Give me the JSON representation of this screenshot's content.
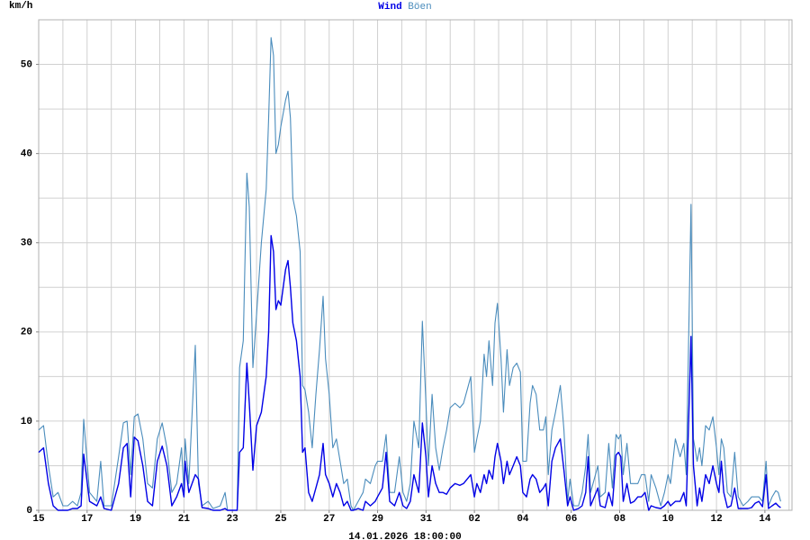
{
  "chart_data": {
    "type": "line",
    "title_separator": " ",
    "y_label": "km/h",
    "footer": "14.01.2026 18:00:00",
    "xlim": [
      0,
      31.12
    ],
    "ylim": [
      0,
      55
    ],
    "xticks": [
      {
        "value": 0,
        "label": "15"
      },
      {
        "value": 2,
        "label": "17"
      },
      {
        "value": 4,
        "label": "19"
      },
      {
        "value": 6,
        "label": "21"
      },
      {
        "value": 8,
        "label": "23"
      },
      {
        "value": 10,
        "label": "25"
      },
      {
        "value": 12,
        "label": "27"
      },
      {
        "value": 14,
        "label": "29"
      },
      {
        "value": 16,
        "label": "31"
      },
      {
        "value": 18,
        "label": "02"
      },
      {
        "value": 20,
        "label": "04"
      },
      {
        "value": 22,
        "label": "06"
      },
      {
        "value": 24,
        "label": "08"
      },
      {
        "value": 26,
        "label": "10"
      },
      {
        "value": 28,
        "label": "12"
      },
      {
        "value": 30,
        "label": "14"
      }
    ],
    "yticks": [
      0,
      10,
      20,
      30,
      40,
      50
    ],
    "xgrid": [
      1,
      2,
      3,
      4,
      5,
      6,
      7,
      8,
      9,
      10,
      11,
      12,
      13,
      14,
      15,
      16,
      17,
      18,
      19,
      20,
      21,
      22,
      23,
      24,
      25,
      26,
      27,
      28,
      29,
      30,
      31
    ],
    "ygrid": [
      5,
      10,
      15,
      20,
      25,
      30,
      35,
      40,
      45,
      50
    ],
    "grid": true,
    "x": [
      0,
      0.2,
      0.4,
      0.6,
      0.8,
      1,
      1.2,
      1.4,
      1.6,
      1.75,
      1.86,
      2.1,
      2.4,
      2.56,
      2.7,
      3,
      3.3,
      3.5,
      3.65,
      3.8,
      3.95,
      4.1,
      4.3,
      4.5,
      4.7,
      4.9,
      5.1,
      5.3,
      5.5,
      5.7,
      5.9,
      6,
      6.05,
      6.2,
      6.47,
      6.6,
      6.75,
      7,
      7.2,
      7.5,
      7.7,
      7.8,
      8.2,
      8.3,
      8.45,
      8.6,
      8.7,
      8.85,
      9,
      9.2,
      9.4,
      9.5,
      9.6,
      9.7,
      9.8,
      9.9,
      10,
      10.2,
      10.3,
      10.4,
      10.5,
      10.65,
      10.8,
      10.9,
      11,
      11.15,
      11.3,
      11.45,
      11.6,
      11.75,
      11.85,
      12,
      12.15,
      12.3,
      12.45,
      12.6,
      12.75,
      12.9,
      13,
      13.2,
      13.4,
      13.5,
      13.7,
      13.9,
      14,
      14.2,
      14.35,
      14.5,
      14.7,
      14.9,
      15.05,
      15.2,
      15.35,
      15.5,
      15.7,
      15.85,
      16,
      16.1,
      16.25,
      16.4,
      16.55,
      16.7,
      16.85,
      17,
      17.2,
      17.4,
      17.55,
      17.7,
      17.85,
      18,
      18.1,
      18.25,
      18.4,
      18.5,
      18.6,
      18.75,
      18.85,
      18.95,
      19.1,
      19.2,
      19.35,
      19.45,
      19.6,
      19.75,
      19.9,
      20,
      20.15,
      20.3,
      20.4,
      20.55,
      20.7,
      20.85,
      20.95,
      21.05,
      21.2,
      21.35,
      21.55,
      21.7,
      21.85,
      21.95,
      22.1,
      22.3,
      22.45,
      22.6,
      22.7,
      22.8,
      22.95,
      23.1,
      23.2,
      23.4,
      23.55,
      23.7,
      23.85,
      23.95,
      24.05,
      24.15,
      24.3,
      24.45,
      24.6,
      24.75,
      24.9,
      25.05,
      25.2,
      25.3,
      25.5,
      25.7,
      25.85,
      26,
      26.1,
      26.3,
      26.5,
      26.65,
      26.75,
      26.95,
      27.05,
      27.2,
      27.3,
      27.4,
      27.55,
      27.7,
      27.85,
      28,
      28.1,
      28.2,
      28.3,
      28.45,
      28.6,
      28.75,
      28.9,
      29.1,
      29.3,
      29.45,
      29.6,
      29.75,
      29.9,
      30.05,
      30.15,
      30.3,
      30.45,
      30.55,
      30.65
    ],
    "series": [
      {
        "name": "Wind",
        "color": "#0000e6",
        "values": [
          6.5,
          7,
          3,
          0.5,
          0,
          0,
          0,
          0.2,
          0.2,
          0.5,
          6.3,
          1,
          0.5,
          1.5,
          0.2,
          0,
          3,
          7,
          7.5,
          1.5,
          8.2,
          7.8,
          5,
          1,
          0.5,
          5.5,
          7.2,
          5,
          0.5,
          1.5,
          3,
          1.5,
          5.5,
          2,
          4,
          3.5,
          0.3,
          0.2,
          0,
          0,
          0.2,
          0,
          0,
          6.5,
          7,
          16.5,
          12,
          4.5,
          9.5,
          11,
          15,
          20,
          30.8,
          29,
          22.5,
          23.5,
          23,
          27,
          28,
          25,
          21,
          19,
          15,
          6.5,
          7,
          2,
          1,
          2.5,
          4,
          7.5,
          4,
          3,
          1.5,
          3,
          2,
          0.5,
          1,
          0,
          0,
          0.2,
          0,
          1,
          0.5,
          1,
          1.5,
          2.5,
          6.5,
          1,
          0.5,
          2,
          0.5,
          0.2,
          1,
          4,
          2,
          9.8,
          6,
          1.5,
          5,
          3,
          2,
          2,
          1.8,
          2.5,
          3,
          2.8,
          3,
          3.5,
          4,
          1.5,
          3,
          2,
          4,
          3,
          4.5,
          3.5,
          6,
          7.5,
          5.5,
          3,
          5.5,
          4,
          5,
          6,
          5,
          2,
          1.5,
          3.5,
          4,
          3.5,
          2,
          2.5,
          3,
          0.5,
          5.5,
          7,
          8,
          4.5,
          0.5,
          1.5,
          0,
          0.2,
          0.5,
          2,
          6,
          0.5,
          1.5,
          2.5,
          0.5,
          0.3,
          2,
          0.5,
          6.2,
          6.5,
          6,
          1,
          3,
          0.8,
          1,
          1.5,
          1.5,
          2,
          0,
          0.5,
          0.3,
          0.2,
          0.5,
          1,
          0.5,
          1,
          1,
          2,
          0.5,
          19.5,
          5,
          0.5,
          2.5,
          1,
          4,
          3,
          5,
          3,
          2,
          5.5,
          2,
          0.3,
          0.5,
          2.5,
          0.2,
          0.2,
          0.2,
          0.3,
          0.8,
          1,
          0.4,
          4,
          0.2,
          0.5,
          0.8,
          0.5,
          0.3
        ]
      },
      {
        "name": "Böen",
        "color": "#4a8cbc",
        "values": [
          9,
          9.5,
          5,
          1.5,
          2,
          0.5,
          0.5,
          1,
          0.5,
          2,
          10.2,
          2,
          1,
          5.5,
          0.5,
          0.5,
          6,
          9.8,
          10,
          4,
          10.5,
          10.8,
          8,
          3,
          2.5,
          8,
          9.8,
          7,
          2,
          3,
          7,
          2,
          8,
          3,
          18.5,
          3,
          0.5,
          1,
          0.2,
          0.5,
          2,
          0,
          0,
          16,
          19,
          37.8,
          34,
          16,
          22,
          30,
          36,
          44,
          53,
          51,
          40,
          41,
          43,
          46,
          47,
          44,
          35,
          33,
          29,
          14,
          13.5,
          11,
          7,
          13,
          18,
          24,
          17,
          13,
          7,
          8,
          5.5,
          3,
          3.5,
          0.5,
          0,
          1,
          2,
          3.5,
          3,
          5,
          5.5,
          5.5,
          8.5,
          2,
          2,
          6,
          2,
          1,
          3,
          10,
          7,
          21.2,
          12,
          5,
          13,
          7,
          4.5,
          7,
          9,
          11.5,
          12,
          11.5,
          12,
          13.5,
          15,
          6.5,
          8,
          10,
          17.5,
          15,
          19,
          14,
          21,
          23.2,
          17,
          11,
          18,
          14,
          16,
          16.5,
          15.5,
          5.5,
          5.5,
          12,
          14,
          13,
          9,
          9,
          10.5,
          4,
          9,
          11,
          14,
          9,
          1,
          3.5,
          0.5,
          0.5,
          2,
          5,
          8.5,
          2,
          3.5,
          5,
          1.5,
          2,
          7.5,
          2.5,
          8.5,
          8,
          8.5,
          4,
          7.5,
          3,
          3,
          3,
          4,
          4,
          1,
          4,
          2.5,
          0.5,
          2,
          4,
          3,
          8,
          6,
          7.5,
          4,
          34.3,
          8,
          5.5,
          7,
          5,
          9.5,
          9,
          10.5,
          7,
          4,
          8,
          7,
          2,
          1.5,
          6.5,
          1.5,
          0.5,
          1,
          1.5,
          1.5,
          1.5,
          1,
          5.5,
          0.5,
          1.5,
          2.2,
          2,
          1
        ]
      }
    ]
  }
}
